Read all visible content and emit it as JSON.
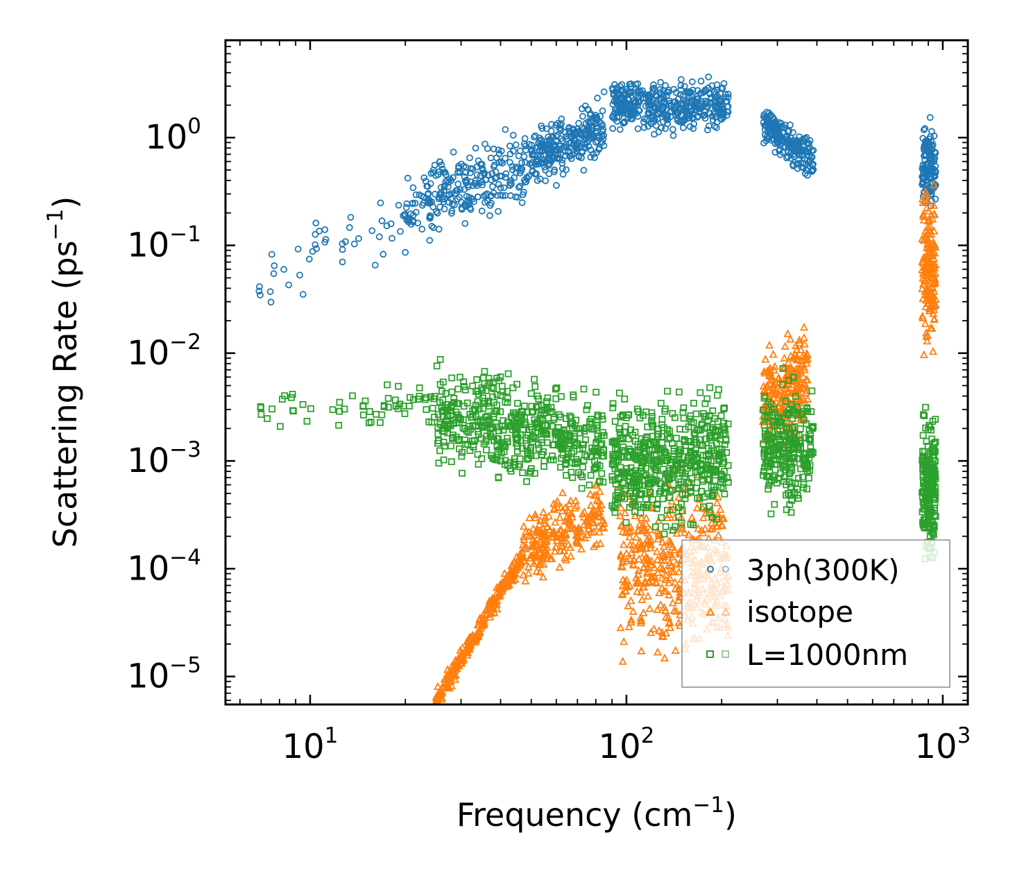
{
  "chart_data": {
    "type": "scatter",
    "xscale": "log",
    "yscale": "log",
    "xlim": [
      5.4,
      1200
    ],
    "ylim": [
      5.5e-06,
      8.0
    ],
    "xlabel": "Frequency (cm",
    "xlabel_sup": "−1",
    "xlabel_close": ")",
    "ylabel": "Scattering Rate (ps",
    "ylabel_sup": "−1",
    "ylabel_close": ")",
    "x_ticks": [
      {
        "value": 10,
        "base": "10",
        "exp": "1"
      },
      {
        "value": 100,
        "base": "10",
        "exp": "2"
      },
      {
        "value": 1000,
        "base": "10",
        "exp": "3"
      }
    ],
    "y_ticks": [
      {
        "value": 1e-05,
        "base": "10",
        "exp": "−5"
      },
      {
        "value": 0.0001,
        "base": "10",
        "exp": "−4"
      },
      {
        "value": 0.001,
        "base": "10",
        "exp": "−3"
      },
      {
        "value": 0.01,
        "base": "10",
        "exp": "−2"
      },
      {
        "value": 0.1,
        "base": "10",
        "exp": "−1"
      },
      {
        "value": 1,
        "base": "10",
        "exp": "0"
      }
    ],
    "legend_position": "lower-right",
    "series": [
      {
        "name": "3ph(300K)",
        "marker": "circle",
        "color": "#1f77b4",
        "clusters": [
          {
            "xmin": 6.8,
            "xmax": 20,
            "ycenter_log": -1.05,
            "spread_log": 0.28,
            "slope": 1.3,
            "n": 45
          },
          {
            "xmin": 20,
            "xmax": 50,
            "ycenter_log": -0.45,
            "spread_log": 0.22,
            "slope": 1.1,
            "n": 260
          },
          {
            "xmin": 50,
            "xmax": 85,
            "ycenter_log": -0.05,
            "spread_log": 0.18,
            "slope": 1.3,
            "n": 260
          },
          {
            "xmin": 90,
            "xmax": 210,
            "ycenter_log": 0.3,
            "spread_log": 0.15,
            "slope": 0.0,
            "n": 420
          },
          {
            "xmin": 270,
            "xmax": 390,
            "ycenter_log": -0.05,
            "spread_log": 0.12,
            "slope": -2.2,
            "n": 200
          },
          {
            "xmin": 860,
            "xmax": 950,
            "ycenter_log": -0.25,
            "spread_log": 0.25,
            "slope": 0.0,
            "n": 130
          }
        ]
      },
      {
        "name": "isotope",
        "marker": "triangle",
        "color": "#ff7f0e",
        "clusters": [
          {
            "xmin": 25,
            "xmax": 47,
            "ycenter_log": -4.55,
            "spread_log": 0.06,
            "slope": 4.9,
            "n": 260
          },
          {
            "xmin": 47,
            "xmax": 85,
            "ycenter_log": -3.65,
            "spread_log": 0.2,
            "slope": 1.2,
            "n": 220
          },
          {
            "xmin": 95,
            "xmax": 210,
            "ycenter_log": -4.0,
            "spread_log": 0.5,
            "slope": 0.0,
            "n": 420
          },
          {
            "xmin": 270,
            "xmax": 375,
            "ycenter_log": -2.35,
            "spread_log": 0.3,
            "slope": 1.5,
            "n": 230
          },
          {
            "xmin": 860,
            "xmax": 950,
            "ycenter_log": -1.2,
            "spread_log": 0.45,
            "slope": 0.0,
            "n": 170
          }
        ]
      },
      {
        "name": "L=1000nm",
        "marker": "square",
        "color": "#2ca02c",
        "clusters": [
          {
            "xmin": 6.8,
            "xmax": 25,
            "ycenter_log": -2.5,
            "spread_log": 0.12,
            "slope": 0.1,
            "n": 60
          },
          {
            "xmin": 25,
            "xmax": 85,
            "ycenter_log": -2.7,
            "spread_log": 0.28,
            "slope": -0.6,
            "n": 520
          },
          {
            "xmin": 90,
            "xmax": 210,
            "ycenter_log": -3.0,
            "spread_log": 0.38,
            "slope": 0.4,
            "n": 520
          },
          {
            "xmin": 270,
            "xmax": 390,
            "ycenter_log": -2.85,
            "spread_log": 0.38,
            "slope": 0.0,
            "n": 260
          },
          {
            "xmin": 860,
            "xmax": 950,
            "ycenter_log": -3.25,
            "spread_log": 0.4,
            "slope": 0.0,
            "n": 200
          }
        ]
      }
    ]
  }
}
